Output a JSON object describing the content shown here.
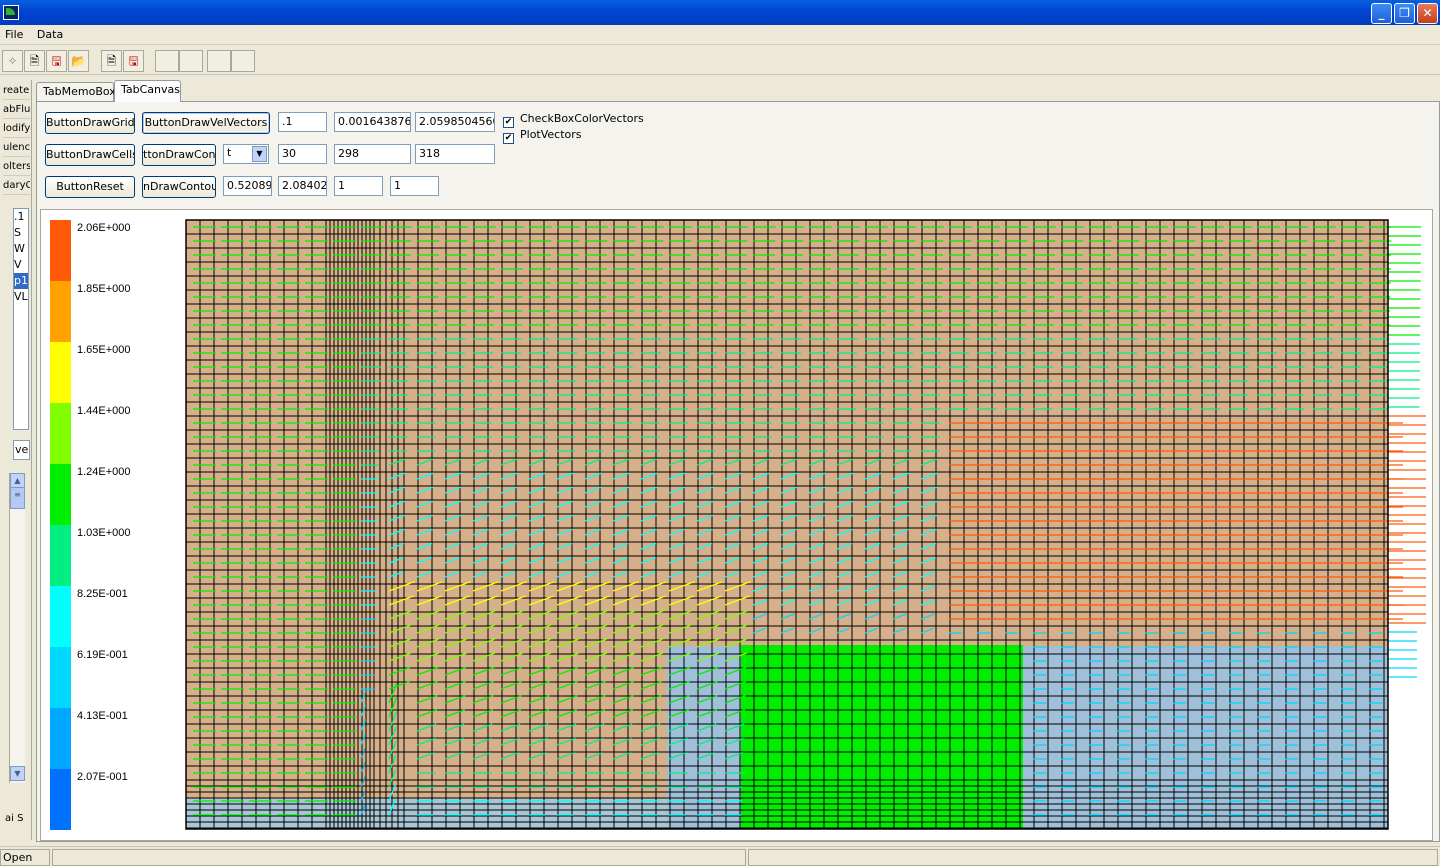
{
  "window": {
    "title": "",
    "buttons": [
      "minimize",
      "maximize",
      "close"
    ]
  },
  "menu": [
    "File",
    "Data"
  ],
  "toolbar": {
    "icons": [
      "new-icon",
      "open-doc-icon",
      "save-icon",
      "open-folder-icon",
      "copy-icon",
      "save-as-icon"
    ]
  },
  "left_panel": {
    "items": [
      "reate",
      "abFlu",
      "lodify",
      "ulenc",
      "olters",
      "daryC"
    ],
    "list": [
      ".1",
      "S",
      "W",
      "V",
      "p1",
      "VL"
    ],
    "field": "ve",
    "bottom_label": "ai S"
  },
  "tabs": [
    {
      "label": "TabMemoBox",
      "active": false
    },
    {
      "label": "TabCanvas",
      "active": true
    }
  ],
  "controls": {
    "btn_draw_grid": "ButtonDrawGrid",
    "btn_draw_vel": "ButtonDrawVelVectors",
    "btn_draw_cells": "ButtonDrawCells",
    "btn_draw_contours_a": "ttonDrawConto",
    "btn_reset": "ButtonReset",
    "btn_draw_contours_b": "nDrawContours",
    "edit_r1": [
      ".1",
      "0.0016438766",
      "2.0598504560"
    ],
    "combo_value": "t",
    "edit_r2": [
      "30",
      "298",
      "318"
    ],
    "edit_r3": [
      "0.52089",
      "2.08402",
      "1",
      "1"
    ],
    "check_color_vectors": {
      "label": "CheckBoxColorVectors",
      "checked": true
    },
    "plot_vectors": {
      "label": "PlotVectors",
      "checked": true
    }
  },
  "legend": {
    "labels": [
      "2.06E+000",
      "1.85E+000",
      "1.65E+000",
      "1.44E+000",
      "1.24E+000",
      "1.03E+000",
      "8.25E-001",
      "6.19E-001",
      "4.13E-001",
      "2.07E-001"
    ],
    "colors": [
      "#ff5a0a",
      "#ffa200",
      "#ffff00",
      "#80ff00",
      "#00ef00",
      "#00ef80",
      "#00ffff",
      "#00d8ff",
      "#00a8ff",
      "#0070ff"
    ]
  },
  "status": {
    "text": "Open"
  }
}
